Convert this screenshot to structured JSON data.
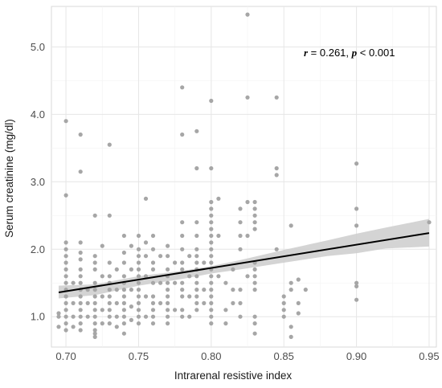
{
  "chart_data": {
    "type": "scatter",
    "xlabel": "Intrarenal resistive index",
    "ylabel": "Serum creatinine (mg/dl)",
    "xlim": [
      0.69,
      0.955
    ],
    "ylim": [
      0.55,
      5.6
    ],
    "x_ticks": [
      0.7,
      0.75,
      0.8,
      0.85,
      0.9,
      0.95
    ],
    "x_tick_labels": [
      "0.70",
      "0.75",
      "0.80",
      "0.85",
      "0.90",
      "0.95"
    ],
    "y_ticks": [
      1.0,
      2.0,
      3.0,
      4.0,
      5.0
    ],
    "y_tick_labels": [
      "1.0",
      "2.0",
      "3.0",
      "4.0",
      "5.0"
    ],
    "grid": true,
    "annotation": {
      "r_symbol": "r",
      "r_text": " = 0.261, ",
      "p_symbol": "p",
      "p_text": " < 0.001"
    },
    "colors": {
      "points": "#a6a6a6",
      "fit_line": "#000000",
      "confidence_band": "#cccccc",
      "grid_major": "#e6e6e6",
      "grid_minor": "#f3f3f3",
      "panel_border": "#d9d9d9"
    },
    "fit": {
      "x": [
        0.695,
        0.95
      ],
      "y": [
        1.36,
        2.24
      ]
    },
    "confidence_band": {
      "x": [
        0.695,
        0.72,
        0.75,
        0.78,
        0.8,
        0.82,
        0.85,
        0.88,
        0.9,
        0.92,
        0.95
      ],
      "upper": [
        1.46,
        1.48,
        1.6,
        1.68,
        1.75,
        1.84,
        1.99,
        2.13,
        2.23,
        2.32,
        2.45
      ],
      "lower": [
        1.27,
        1.32,
        1.46,
        1.56,
        1.64,
        1.7,
        1.8,
        1.9,
        1.94,
        2.01,
        2.04
      ]
    },
    "points": [
      [
        0.695,
        0.85
      ],
      [
        0.695,
        1.0
      ],
      [
        0.695,
        1.05
      ],
      [
        0.7,
        3.9
      ],
      [
        0.7,
        2.8
      ],
      [
        0.7,
        2.1
      ],
      [
        0.7,
        2.0
      ],
      [
        0.7,
        1.9
      ],
      [
        0.7,
        1.8
      ],
      [
        0.7,
        1.7
      ],
      [
        0.7,
        1.6
      ],
      [
        0.7,
        1.5
      ],
      [
        0.7,
        1.4
      ],
      [
        0.7,
        1.3
      ],
      [
        0.7,
        1.2
      ],
      [
        0.7,
        1.1
      ],
      [
        0.7,
        1.0
      ],
      [
        0.7,
        0.9
      ],
      [
        0.7,
        0.8
      ],
      [
        0.705,
        1.5
      ],
      [
        0.705,
        1.2
      ],
      [
        0.705,
        1.0
      ],
      [
        0.705,
        0.85
      ],
      [
        0.71,
        3.7
      ],
      [
        0.71,
        3.15
      ],
      [
        0.71,
        2.1
      ],
      [
        0.71,
        1.95
      ],
      [
        0.71,
        1.85
      ],
      [
        0.71,
        1.7
      ],
      [
        0.71,
        1.6
      ],
      [
        0.71,
        1.5
      ],
      [
        0.71,
        1.4
      ],
      [
        0.71,
        1.3
      ],
      [
        0.71,
        1.2
      ],
      [
        0.71,
        1.1
      ],
      [
        0.71,
        1.0
      ],
      [
        0.71,
        0.9
      ],
      [
        0.71,
        0.8
      ],
      [
        0.715,
        1.4
      ],
      [
        0.715,
        1.2
      ],
      [
        0.715,
        1.0
      ],
      [
        0.72,
        2.5
      ],
      [
        0.72,
        1.9
      ],
      [
        0.72,
        1.8
      ],
      [
        0.72,
        1.7
      ],
      [
        0.72,
        1.5
      ],
      [
        0.72,
        1.4
      ],
      [
        0.72,
        1.3
      ],
      [
        0.72,
        1.2
      ],
      [
        0.72,
        1.1
      ],
      [
        0.72,
        1.0
      ],
      [
        0.72,
        0.9
      ],
      [
        0.72,
        0.8
      ],
      [
        0.72,
        0.75
      ],
      [
        0.72,
        0.7
      ],
      [
        0.725,
        2.05
      ],
      [
        0.725,
        1.6
      ],
      [
        0.725,
        1.3
      ],
      [
        0.725,
        1.1
      ],
      [
        0.725,
        0.9
      ],
      [
        0.73,
        3.55
      ],
      [
        0.73,
        2.5
      ],
      [
        0.73,
        1.8
      ],
      [
        0.73,
        1.6
      ],
      [
        0.73,
        1.5
      ],
      [
        0.73,
        1.4
      ],
      [
        0.73,
        1.3
      ],
      [
        0.73,
        1.2
      ],
      [
        0.73,
        1.1
      ],
      [
        0.73,
        1.0
      ],
      [
        0.73,
        0.9
      ],
      [
        0.735,
        1.7
      ],
      [
        0.735,
        1.4
      ],
      [
        0.735,
        1.2
      ],
      [
        0.735,
        1.0
      ],
      [
        0.735,
        0.85
      ],
      [
        0.74,
        2.2
      ],
      [
        0.74,
        1.95
      ],
      [
        0.74,
        1.8
      ],
      [
        0.74,
        1.6
      ],
      [
        0.74,
        1.5
      ],
      [
        0.74,
        1.4
      ],
      [
        0.74,
        1.3
      ],
      [
        0.74,
        1.2
      ],
      [
        0.74,
        1.1
      ],
      [
        0.74,
        1.0
      ],
      [
        0.74,
        0.9
      ],
      [
        0.74,
        0.75
      ],
      [
        0.745,
        2.05
      ],
      [
        0.745,
        1.7
      ],
      [
        0.745,
        1.4
      ],
      [
        0.745,
        1.15
      ],
      [
        0.745,
        0.95
      ],
      [
        0.75,
        2.2
      ],
      [
        0.75,
        2.0
      ],
      [
        0.75,
        1.9
      ],
      [
        0.75,
        1.8
      ],
      [
        0.75,
        1.7
      ],
      [
        0.75,
        1.6
      ],
      [
        0.75,
        1.5
      ],
      [
        0.75,
        1.4
      ],
      [
        0.75,
        1.3
      ],
      [
        0.75,
        1.2
      ],
      [
        0.75,
        1.1
      ],
      [
        0.75,
        1.0
      ],
      [
        0.75,
        0.9
      ],
      [
        0.755,
        2.75
      ],
      [
        0.755,
        2.1
      ],
      [
        0.755,
        1.9
      ],
      [
        0.755,
        1.6
      ],
      [
        0.755,
        1.3
      ],
      [
        0.755,
        1.0
      ],
      [
        0.76,
        2.2
      ],
      [
        0.76,
        2.0
      ],
      [
        0.76,
        1.8
      ],
      [
        0.76,
        1.7
      ],
      [
        0.76,
        1.5
      ],
      [
        0.76,
        1.3
      ],
      [
        0.76,
        1.2
      ],
      [
        0.76,
        1.1
      ],
      [
        0.76,
        1.0
      ],
      [
        0.76,
        0.9
      ],
      [
        0.765,
        1.9
      ],
      [
        0.765,
        1.5
      ],
      [
        0.765,
        1.2
      ],
      [
        0.77,
        2.05
      ],
      [
        0.77,
        1.9
      ],
      [
        0.77,
        1.7
      ],
      [
        0.77,
        1.6
      ],
      [
        0.77,
        1.5
      ],
      [
        0.77,
        1.4
      ],
      [
        0.77,
        1.3
      ],
      [
        0.77,
        1.2
      ],
      [
        0.77,
        1.1
      ],
      [
        0.77,
        1.0
      ],
      [
        0.77,
        0.9
      ],
      [
        0.775,
        1.8
      ],
      [
        0.775,
        1.5
      ],
      [
        0.775,
        1.1
      ],
      [
        0.78,
        4.4
      ],
      [
        0.78,
        3.7
      ],
      [
        0.78,
        2.4
      ],
      [
        0.78,
        2.2
      ],
      [
        0.78,
        2.0
      ],
      [
        0.78,
        1.8
      ],
      [
        0.78,
        1.7
      ],
      [
        0.78,
        1.5
      ],
      [
        0.78,
        1.4
      ],
      [
        0.78,
        1.3
      ],
      [
        0.78,
        1.1
      ],
      [
        0.78,
        1.0
      ],
      [
        0.785,
        1.9
      ],
      [
        0.785,
        1.6
      ],
      [
        0.785,
        1.3
      ],
      [
        0.785,
        1.0
      ],
      [
        0.79,
        3.75
      ],
      [
        0.79,
        3.2
      ],
      [
        0.79,
        2.4
      ],
      [
        0.79,
        2.2
      ],
      [
        0.79,
        2.0
      ],
      [
        0.79,
        1.9
      ],
      [
        0.79,
        1.8
      ],
      [
        0.79,
        1.7
      ],
      [
        0.79,
        1.6
      ],
      [
        0.79,
        1.5
      ],
      [
        0.79,
        1.4
      ],
      [
        0.79,
        1.3
      ],
      [
        0.79,
        1.2
      ],
      [
        0.79,
        1.1
      ],
      [
        0.795,
        1.8
      ],
      [
        0.795,
        1.4
      ],
      [
        0.795,
        1.2
      ],
      [
        0.8,
        4.2
      ],
      [
        0.8,
        3.2
      ],
      [
        0.8,
        2.7
      ],
      [
        0.8,
        2.6
      ],
      [
        0.8,
        2.5
      ],
      [
        0.8,
        2.4
      ],
      [
        0.8,
        2.3
      ],
      [
        0.8,
        2.2
      ],
      [
        0.8,
        2.1
      ],
      [
        0.8,
        2.0
      ],
      [
        0.8,
        1.9
      ],
      [
        0.8,
        1.8
      ],
      [
        0.8,
        1.7
      ],
      [
        0.8,
        1.6
      ],
      [
        0.8,
        1.5
      ],
      [
        0.8,
        1.4
      ],
      [
        0.8,
        1.3
      ],
      [
        0.8,
        1.2
      ],
      [
        0.8,
        1.1
      ],
      [
        0.8,
        1.0
      ],
      [
        0.8,
        0.9
      ],
      [
        0.805,
        2.75
      ],
      [
        0.805,
        2.2
      ],
      [
        0.805,
        1.6
      ],
      [
        0.81,
        1.5
      ],
      [
        0.81,
        1.1
      ],
      [
        0.81,
        0.9
      ],
      [
        0.815,
        1.7
      ],
      [
        0.815,
        1.4
      ],
      [
        0.815,
        1.2
      ],
      [
        0.82,
        2.6
      ],
      [
        0.82,
        2.4
      ],
      [
        0.82,
        2.2
      ],
      [
        0.82,
        2.0
      ],
      [
        0.82,
        1.4
      ],
      [
        0.82,
        1.2
      ],
      [
        0.82,
        1.0
      ],
      [
        0.825,
        5.48
      ],
      [
        0.825,
        4.25
      ],
      [
        0.825,
        2.7
      ],
      [
        0.825,
        2.2
      ],
      [
        0.825,
        1.6
      ],
      [
        0.83,
        2.7
      ],
      [
        0.83,
        2.6
      ],
      [
        0.83,
        2.5
      ],
      [
        0.83,
        2.4
      ],
      [
        0.83,
        2.3
      ],
      [
        0.83,
        1.8
      ],
      [
        0.83,
        1.7
      ],
      [
        0.83,
        1.6
      ],
      [
        0.83,
        1.5
      ],
      [
        0.83,
        1.4
      ],
      [
        0.83,
        1.0
      ],
      [
        0.83,
        0.9
      ],
      [
        0.83,
        0.75
      ],
      [
        0.845,
        4.25
      ],
      [
        0.845,
        3.2
      ],
      [
        0.845,
        3.1
      ],
      [
        0.845,
        2.0
      ],
      [
        0.85,
        1.3
      ],
      [
        0.85,
        1.2
      ],
      [
        0.85,
        1.1
      ],
      [
        0.85,
        1.0
      ],
      [
        0.855,
        2.35
      ],
      [
        0.855,
        1.5
      ],
      [
        0.855,
        1.4
      ],
      [
        0.855,
        0.85
      ],
      [
        0.855,
        0.7
      ],
      [
        0.86,
        1.55
      ],
      [
        0.86,
        1.2
      ],
      [
        0.86,
        1.05
      ],
      [
        0.865,
        1.4
      ],
      [
        0.9,
        3.27
      ],
      [
        0.9,
        2.6
      ],
      [
        0.9,
        2.35
      ],
      [
        0.9,
        1.5
      ],
      [
        0.9,
        1.45
      ],
      [
        0.9,
        1.25
      ],
      [
        0.95,
        2.4
      ]
    ]
  }
}
